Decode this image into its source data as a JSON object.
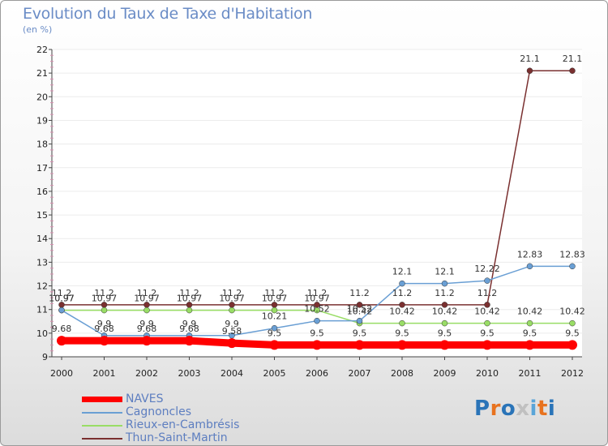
{
  "header": {
    "title": "Evolution du Taux de Taxe d'Habitation",
    "subtitle": "(en %)"
  },
  "logo": {
    "text": "Proxiti",
    "colors": [
      "#2a74b8",
      "#e8731f",
      "#2a74b8",
      "#c0c0c0",
      "#5aa5d8",
      "#e8731f",
      "#2a74b8"
    ]
  },
  "chart_data": {
    "type": "line",
    "title": "Evolution du Taux de Taxe d'Habitation",
    "ylabel": "(en %)",
    "xlabel": "",
    "ylim": [
      9,
      22
    ],
    "yticks": [
      9,
      10,
      11,
      12,
      13,
      14,
      15,
      16,
      17,
      18,
      19,
      20,
      21,
      22
    ],
    "x": [
      2000,
      2001,
      2002,
      2003,
      2004,
      2005,
      2006,
      2007,
      2008,
      2009,
      2010,
      2011,
      2012
    ],
    "series": [
      {
        "name": "NAVES",
        "color": "#ff0000",
        "values": [
          9.68,
          9.68,
          9.68,
          9.68,
          9.58,
          9.5,
          9.5,
          9.5,
          9.5,
          9.5,
          9.5,
          9.5,
          9.5
        ],
        "labels": [
          "9.68",
          "9.68",
          "9.68",
          "9.68",
          "9.58",
          "9.5",
          "9.5",
          "9.5",
          "9.5",
          "9.5",
          "9.5",
          "9.5",
          "9.5"
        ]
      },
      {
        "name": "Cagnoncles",
        "color": "#6a9fd4",
        "values": [
          10.97,
          9.9,
          9.9,
          9.9,
          9.9,
          10.21,
          10.52,
          10.52,
          12.1,
          12.1,
          12.22,
          12.83,
          12.83
        ],
        "labels": [
          "10.97",
          "9.9",
          "9.9",
          "9.9",
          "9.9",
          "10.21",
          "10.52",
          "10.52",
          "12.1",
          "12.1",
          "12.22",
          "12.83",
          "12.83"
        ]
      },
      {
        "name": "Rieux-en-Cambrésis",
        "color": "#99dd66",
        "values": [
          10.97,
          10.97,
          10.97,
          10.97,
          10.97,
          10.97,
          10.97,
          10.42,
          10.42,
          10.42,
          10.42,
          10.42,
          10.42
        ],
        "labels": [
          "10.97",
          "10.97",
          "10.97",
          "10.97",
          "10.97",
          "10.97",
          "10.97",
          "10.42",
          "10.42",
          "10.42",
          "10.42",
          "10.42",
          "10.42"
        ]
      },
      {
        "name": "Thun-Saint-Martin",
        "color": "#7a3030",
        "values": [
          11.2,
          11.2,
          11.2,
          11.2,
          11.2,
          11.2,
          11.2,
          11.2,
          11.2,
          11.2,
          11.2,
          21.1,
          21.1
        ],
        "labels": [
          "11.2",
          "11.2",
          "11.2",
          "11.2",
          "11.2",
          "11.2",
          "11.2",
          "11.2",
          "11.2",
          "11.2",
          "11.2",
          "21.1",
          "21.1"
        ]
      }
    ]
  }
}
